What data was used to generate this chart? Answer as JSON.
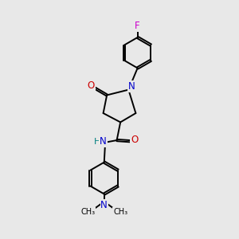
{
  "background_color": "#e8e8e8",
  "atom_colors": {
    "N": "#0000cc",
    "O": "#cc0000",
    "F": "#cc00cc",
    "H": "#008080"
  },
  "bond_color": "#000000",
  "figsize": [
    3.0,
    3.0
  ],
  "dpi": 100,
  "lw": 1.4,
  "fs": 8.5
}
